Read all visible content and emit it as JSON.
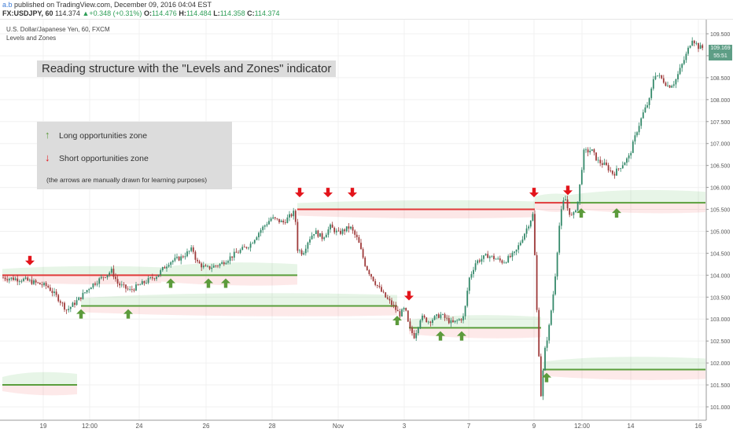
{
  "header": {
    "user": "a.b",
    "published": "published on TradingView.com, December 09, 2016 04:04 EST",
    "symbol": "FX:USDJPY, 60",
    "last": "114.374",
    "change_arrow": "▲",
    "change": "+0.348 (+0.31%)",
    "o_label": "O:",
    "o": "114.476",
    "h_label": "H:",
    "h": "114.484",
    "l_label": "L:",
    "l": "114.358",
    "c_label": "C:",
    "c": "114.374"
  },
  "legend": {
    "instrument": "U.S. Dollar/Japanese Yen, 60, FXCM",
    "indicator": "Levels and Zones"
  },
  "title_box": "Reading structure with the \"Levels and Zones\" indicator",
  "info_box": {
    "long_icon": "↑",
    "long": "Long opportunities zone",
    "short_icon": "↓",
    "short": "Short opportunities zone",
    "note": "(the arrows are manually drawn for learning purposes)"
  },
  "price_tags": {
    "last": "109.169",
    "timer": "55:51"
  },
  "colors": {
    "up_candle": "#34896a",
    "down_candle": "#9e3a3a",
    "support_line": "#5a9e3c",
    "resistance_line": "#e03a3a",
    "long_arrow": "#5c9b3c",
    "short_arrow": "#e3141b",
    "last_price_tag": "#5e9e86"
  },
  "chart_data": {
    "type": "candlestick",
    "y_axis": {
      "position": "right",
      "ticks": [
        "109.500",
        "109.000",
        "108.500",
        "108.000",
        "107.500",
        "107.000",
        "106.500",
        "106.000",
        "105.500",
        "105.000",
        "104.500",
        "104.000",
        "103.500",
        "103.000",
        "102.500",
        "102.000",
        "101.500",
        "101.000"
      ],
      "ylim": [
        100.8,
        109.8
      ]
    },
    "x_axis": {
      "ticks": [
        "19",
        "12:00",
        "24",
        "26",
        "28",
        "Nov",
        "3",
        "7",
        "9",
        "12:00",
        "14",
        "16"
      ]
    },
    "price_path": [
      [
        0,
        103.95
      ],
      [
        30,
        103.9
      ],
      [
        60,
        103.75
      ],
      [
        75,
        103.45
      ],
      [
        85,
        103.2
      ],
      [
        100,
        103.45
      ],
      [
        115,
        103.75
      ],
      [
        130,
        103.95
      ],
      [
        142,
        104.1
      ],
      [
        150,
        103.8
      ],
      [
        165,
        103.65
      ],
      [
        180,
        103.8
      ],
      [
        200,
        104.0
      ],
      [
        215,
        104.3
      ],
      [
        230,
        104.4
      ],
      [
        245,
        104.6
      ],
      [
        250,
        104.3
      ],
      [
        262,
        104.15
      ],
      [
        280,
        104.25
      ],
      [
        300,
        104.5
      ],
      [
        318,
        104.7
      ],
      [
        330,
        105.0
      ],
      [
        345,
        105.3
      ],
      [
        360,
        105.2
      ],
      [
        375,
        105.45
      ],
      [
        378,
        104.6
      ],
      [
        385,
        104.5
      ],
      [
        392,
        104.8
      ],
      [
        400,
        105.0
      ],
      [
        410,
        104.85
      ],
      [
        420,
        105.1
      ],
      [
        430,
        104.95
      ],
      [
        445,
        105.1
      ],
      [
        455,
        104.8
      ],
      [
        465,
        104.2
      ],
      [
        478,
        103.8
      ],
      [
        490,
        103.5
      ],
      [
        500,
        103.3
      ],
      [
        508,
        103.1
      ],
      [
        515,
        103.25
      ],
      [
        520,
        102.8
      ],
      [
        527,
        102.6
      ],
      [
        535,
        103.05
      ],
      [
        545,
        102.95
      ],
      [
        560,
        103.1
      ],
      [
        575,
        102.9
      ],
      [
        590,
        103.05
      ],
      [
        596,
        103.9
      ],
      [
        605,
        104.3
      ],
      [
        620,
        104.45
      ],
      [
        640,
        104.3
      ],
      [
        655,
        104.5
      ],
      [
        668,
        105.0
      ],
      [
        678,
        105.4
      ],
      [
        683,
        103.0
      ],
      [
        688,
        101.2
      ],
      [
        692,
        102.2
      ],
      [
        698,
        102.8
      ],
      [
        705,
        103.8
      ],
      [
        712,
        105.3
      ],
      [
        718,
        105.8
      ],
      [
        722,
        105.5
      ],
      [
        728,
        105.3
      ],
      [
        735,
        105.7
      ],
      [
        742,
        106.8
      ],
      [
        752,
        106.85
      ],
      [
        760,
        106.6
      ],
      [
        770,
        106.5
      ],
      [
        780,
        106.3
      ],
      [
        790,
        106.5
      ],
      [
        800,
        106.7
      ],
      [
        810,
        107.3
      ],
      [
        818,
        107.7
      ],
      [
        826,
        108.0
      ],
      [
        832,
        108.6
      ],
      [
        840,
        108.5
      ],
      [
        850,
        108.3
      ],
      [
        858,
        108.4
      ],
      [
        865,
        108.7
      ],
      [
        872,
        109.0
      ],
      [
        880,
        109.4
      ],
      [
        888,
        109.2
      ],
      [
        895,
        109.169
      ]
    ],
    "levels": [
      {
        "type": "support",
        "price": 103.3,
        "x_range": [
          103,
          505
        ],
        "zone": "green"
      },
      {
        "type": "resistance",
        "price": 104.0,
        "x_range": [
          3,
          205
        ],
        "zone": "red"
      },
      {
        "type": "support",
        "price": 104.0,
        "x_range": [
          205,
          378
        ],
        "zone": "green"
      },
      {
        "type": "support",
        "price": 101.5,
        "x_range": [
          3,
          98
        ],
        "zone": "green"
      },
      {
        "type": "resistance",
        "price": 105.5,
        "x_range": [
          378,
          680
        ],
        "zone": "red"
      },
      {
        "type": "support",
        "price": 102.8,
        "x_range": [
          520,
          688
        ],
        "zone": "green"
      },
      {
        "type": "resistance",
        "price": 105.65,
        "x_range": [
          680,
          725
        ],
        "zone": "red"
      },
      {
        "type": "support",
        "price": 105.65,
        "x_range": [
          725,
          897
        ],
        "zone": "green"
      },
      {
        "type": "support",
        "price": 101.85,
        "x_range": [
          690,
          897
        ],
        "zone": "green"
      }
    ],
    "long_arrows": [
      [
        103,
        103.1
      ],
      [
        163,
        103.1
      ],
      [
        217,
        103.8
      ],
      [
        265,
        103.8
      ],
      [
        287,
        103.8
      ],
      [
        505,
        102.95
      ],
      [
        560,
        102.6
      ],
      [
        587,
        102.6
      ],
      [
        695,
        101.65
      ],
      [
        739,
        105.4
      ],
      [
        784,
        105.4
      ]
    ],
    "short_arrows": [
      [
        38,
        104.35
      ],
      [
        381,
        105.9
      ],
      [
        417,
        105.9
      ],
      [
        448,
        105.9
      ],
      [
        520,
        103.55
      ],
      [
        679,
        105.9
      ],
      [
        722,
        105.95
      ]
    ]
  }
}
